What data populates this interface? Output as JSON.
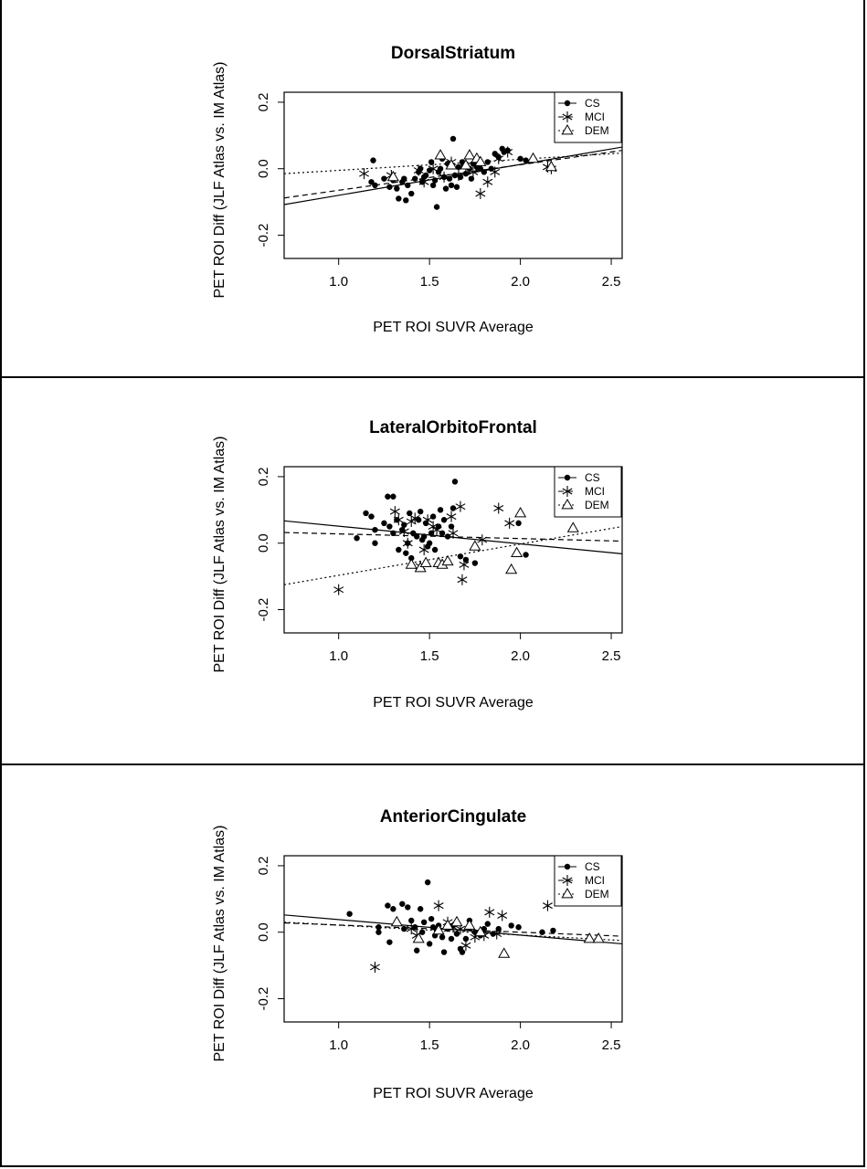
{
  "chart_data": [
    {
      "type": "scatter",
      "title": "DorsalStriatum",
      "xlabel": "PET ROI SUVR Average",
      "ylabel": "PET ROI Diff (JLF Atlas vs. IM Atlas)",
      "xlim": [
        0.7,
        2.56
      ],
      "ylim": [
        -0.27,
        0.23
      ],
      "x_ticks": [
        "1.0",
        "1.5",
        "2.0",
        "2.5"
      ],
      "y_ticks": [
        "-0.2",
        "0.0",
        "0.2"
      ],
      "legend_position": "top-right",
      "series": [
        {
          "name": "CS",
          "marker": "dot",
          "line": "solid",
          "fit": [
            [
              0.7,
              -0.108
            ],
            [
              2.56,
              0.065
            ]
          ],
          "points": [
            [
              1.18,
              -0.04
            ],
            [
              1.19,
              0.025
            ],
            [
              1.2,
              -0.05
            ],
            [
              1.25,
              -0.03
            ],
            [
              1.28,
              -0.055
            ],
            [
              1.3,
              -0.035
            ],
            [
              1.32,
              -0.06
            ],
            [
              1.33,
              -0.09
            ],
            [
              1.35,
              -0.04
            ],
            [
              1.36,
              -0.03
            ],
            [
              1.37,
              -0.095
            ],
            [
              1.38,
              -0.05
            ],
            [
              1.4,
              -0.075
            ],
            [
              1.42,
              -0.03
            ],
            [
              1.44,
              -0.01
            ],
            [
              1.45,
              0.0
            ],
            [
              1.46,
              -0.04
            ],
            [
              1.47,
              -0.025
            ],
            [
              1.48,
              -0.02
            ],
            [
              1.5,
              -0.005
            ],
            [
              1.51,
              0.02
            ],
            [
              1.52,
              -0.05
            ],
            [
              1.53,
              -0.035
            ],
            [
              1.54,
              -0.115
            ],
            [
              1.55,
              -0.01
            ],
            [
              1.56,
              0.0
            ],
            [
              1.57,
              0.03
            ],
            [
              1.58,
              -0.025
            ],
            [
              1.59,
              -0.06
            ],
            [
              1.6,
              0.015
            ],
            [
              1.61,
              -0.03
            ],
            [
              1.62,
              -0.05
            ],
            [
              1.63,
              0.09
            ],
            [
              1.64,
              -0.02
            ],
            [
              1.65,
              -0.055
            ],
            [
              1.66,
              0.005
            ],
            [
              1.67,
              -0.025
            ],
            [
              1.68,
              0.02
            ],
            [
              1.69,
              0.01
            ],
            [
              1.7,
              -0.015
            ],
            [
              1.72,
              0.0
            ],
            [
              1.73,
              -0.03
            ],
            [
              1.74,
              0.015
            ],
            [
              1.76,
              0.005
            ],
            [
              1.78,
              0.0
            ],
            [
              1.8,
              -0.01
            ],
            [
              1.82,
              0.02
            ],
            [
              1.84,
              0.0
            ],
            [
              1.86,
              0.045
            ],
            [
              1.88,
              0.035
            ],
            [
              1.9,
              0.06
            ],
            [
              1.91,
              0.05
            ],
            [
              1.93,
              0.055
            ],
            [
              2.0,
              0.03
            ],
            [
              2.03,
              0.025
            ]
          ]
        },
        {
          "name": "MCI",
          "marker": "asterisk",
          "line": "dashed",
          "fit": [
            [
              0.7,
              -0.088
            ],
            [
              2.56,
              0.055
            ]
          ],
          "points": [
            [
              1.14,
              -0.015
            ],
            [
              1.29,
              -0.02
            ],
            [
              1.44,
              -0.005
            ],
            [
              1.47,
              -0.04
            ],
            [
              1.52,
              0.0
            ],
            [
              1.58,
              -0.025
            ],
            [
              1.62,
              0.02
            ],
            [
              1.66,
              -0.02
            ],
            [
              1.7,
              0.01
            ],
            [
              1.74,
              -0.01
            ],
            [
              1.78,
              -0.075
            ],
            [
              1.82,
              -0.04
            ],
            [
              1.86,
              -0.01
            ],
            [
              1.88,
              0.03
            ],
            [
              1.93,
              0.05
            ],
            [
              2.15,
              0.005
            ],
            [
              2.17,
              0.0
            ]
          ]
        },
        {
          "name": "DEM",
          "marker": "triangle",
          "line": "dotted",
          "fit": [
            [
              0.7,
              -0.015
            ],
            [
              2.56,
              0.047
            ]
          ],
          "points": [
            [
              1.3,
              -0.025
            ],
            [
              1.56,
              0.04
            ],
            [
              1.62,
              0.01
            ],
            [
              1.7,
              0.01
            ],
            [
              1.72,
              0.04
            ],
            [
              1.76,
              0.03
            ],
            [
              1.78,
              0.02
            ],
            [
              2.07,
              0.03
            ],
            [
              2.17,
              0.005
            ]
          ]
        }
      ]
    },
    {
      "type": "scatter",
      "title": "LateralOrbitoFrontal",
      "xlabel": "PET ROI SUVR Average",
      "ylabel": "PET ROI Diff (JLF Atlas vs. IM Atlas)",
      "xlim": [
        0.7,
        2.56
      ],
      "ylim": [
        -0.27,
        0.23
      ],
      "x_ticks": [
        "1.0",
        "1.5",
        "2.0",
        "2.5"
      ],
      "y_ticks": [
        "-0.2",
        "0.0",
        "0.2"
      ],
      "legend_position": "top-right",
      "series": [
        {
          "name": "CS",
          "marker": "dot",
          "line": "solid",
          "fit": [
            [
              0.7,
              0.067
            ],
            [
              2.56,
              -0.032
            ]
          ],
          "points": [
            [
              1.1,
              0.015
            ],
            [
              1.15,
              0.09
            ],
            [
              1.18,
              0.08
            ],
            [
              1.2,
              0.04
            ],
            [
              1.2,
              0.0
            ],
            [
              1.25,
              0.06
            ],
            [
              1.27,
              0.14
            ],
            [
              1.28,
              0.05
            ],
            [
              1.3,
              0.14
            ],
            [
              1.3,
              0.03
            ],
            [
              1.32,
              0.07
            ],
            [
              1.33,
              -0.02
            ],
            [
              1.35,
              0.04
            ],
            [
              1.36,
              0.055
            ],
            [
              1.37,
              -0.03
            ],
            [
              1.38,
              0.0
            ],
            [
              1.39,
              0.09
            ],
            [
              1.4,
              -0.045
            ],
            [
              1.41,
              0.03
            ],
            [
              1.43,
              0.02
            ],
            [
              1.44,
              0.07
            ],
            [
              1.45,
              0.095
            ],
            [
              1.46,
              0.01
            ],
            [
              1.47,
              0.02
            ],
            [
              1.48,
              0.06
            ],
            [
              1.49,
              -0.01
            ],
            [
              1.5,
              0.0
            ],
            [
              1.51,
              0.03
            ],
            [
              1.52,
              0.08
            ],
            [
              1.53,
              -0.02
            ],
            [
              1.55,
              0.05
            ],
            [
              1.56,
              0.1
            ],
            [
              1.57,
              0.03
            ],
            [
              1.58,
              0.07
            ],
            [
              1.6,
              0.02
            ],
            [
              1.62,
              0.05
            ],
            [
              1.63,
              0.105
            ],
            [
              1.64,
              0.185
            ],
            [
              1.67,
              -0.04
            ],
            [
              1.7,
              -0.05
            ],
            [
              1.75,
              -0.06
            ],
            [
              1.99,
              0.06
            ],
            [
              2.03,
              -0.035
            ]
          ]
        },
        {
          "name": "MCI",
          "marker": "asterisk",
          "line": "dashed",
          "fit": [
            [
              0.7,
              0.032
            ],
            [
              2.56,
              0.006
            ]
          ],
          "points": [
            [
              1.0,
              -0.14
            ],
            [
              1.31,
              0.095
            ],
            [
              1.33,
              0.07
            ],
            [
              1.36,
              0.035
            ],
            [
              1.38,
              0.0
            ],
            [
              1.4,
              0.065
            ],
            [
              1.42,
              0.075
            ],
            [
              1.45,
              -0.07
            ],
            [
              1.47,
              -0.02
            ],
            [
              1.49,
              0.07
            ],
            [
              1.52,
              0.05
            ],
            [
              1.54,
              0.04
            ],
            [
              1.62,
              0.08
            ],
            [
              1.63,
              0.03
            ],
            [
              1.67,
              0.11
            ],
            [
              1.68,
              -0.11
            ],
            [
              1.69,
              -0.065
            ],
            [
              1.79,
              0.01
            ],
            [
              1.88,
              0.105
            ],
            [
              1.94,
              0.06
            ]
          ]
        },
        {
          "name": "DEM",
          "marker": "triangle",
          "line": "dotted",
          "fit": [
            [
              0.7,
              -0.125
            ],
            [
              2.56,
              0.05
            ]
          ],
          "points": [
            [
              1.4,
              -0.065
            ],
            [
              1.45,
              -0.075
            ],
            [
              1.48,
              -0.06
            ],
            [
              1.55,
              -0.06
            ],
            [
              1.57,
              -0.065
            ],
            [
              1.6,
              -0.055
            ],
            [
              1.75,
              -0.01
            ],
            [
              1.95,
              -0.08
            ],
            [
              1.98,
              -0.03
            ],
            [
              2.0,
              0.09
            ],
            [
              2.29,
              0.045
            ]
          ]
        }
      ]
    },
    {
      "type": "scatter",
      "title": "AnteriorCingulate",
      "xlabel": "PET ROI SUVR Average",
      "ylabel": "PET ROI Diff (JLF Atlas vs. IM Atlas)",
      "xlim": [
        0.7,
        2.56
      ],
      "ylim": [
        -0.27,
        0.23
      ],
      "x_ticks": [
        "1.0",
        "1.5",
        "2.0",
        "2.5"
      ],
      "y_ticks": [
        "-0.2",
        "0.0",
        "0.2"
      ],
      "legend_position": "top-right",
      "series": [
        {
          "name": "CS",
          "marker": "dot",
          "line": "solid",
          "fit": [
            [
              0.7,
              0.052
            ],
            [
              2.56,
              -0.035
            ]
          ],
          "points": [
            [
              1.06,
              0.055
            ],
            [
              1.22,
              0.0
            ],
            [
              1.22,
              0.015
            ],
            [
              1.27,
              0.08
            ],
            [
              1.28,
              -0.03
            ],
            [
              1.3,
              0.07
            ],
            [
              1.32,
              0.03
            ],
            [
              1.35,
              0.085
            ],
            [
              1.36,
              0.01
            ],
            [
              1.38,
              0.075
            ],
            [
              1.4,
              0.035
            ],
            [
              1.42,
              0.015
            ],
            [
              1.43,
              -0.055
            ],
            [
              1.45,
              0.07
            ],
            [
              1.46,
              0.0
            ],
            [
              1.47,
              0.03
            ],
            [
              1.49,
              0.15
            ],
            [
              1.5,
              -0.035
            ],
            [
              1.51,
              0.04
            ],
            [
              1.52,
              0.015
            ],
            [
              1.53,
              -0.01
            ],
            [
              1.54,
              0.005
            ],
            [
              1.55,
              0.02
            ],
            [
              1.57,
              -0.015
            ],
            [
              1.58,
              -0.06
            ],
            [
              1.6,
              0.01
            ],
            [
              1.62,
              -0.02
            ],
            [
              1.63,
              0.02
            ],
            [
              1.65,
              -0.005
            ],
            [
              1.67,
              -0.05
            ],
            [
              1.68,
              -0.06
            ],
            [
              1.7,
              -0.02
            ],
            [
              1.72,
              0.035
            ],
            [
              1.75,
              0.0
            ],
            [
              1.78,
              -0.01
            ],
            [
              1.8,
              0.01
            ],
            [
              1.82,
              0.025
            ],
            [
              1.85,
              -0.005
            ],
            [
              1.88,
              0.01
            ],
            [
              1.95,
              0.02
            ],
            [
              1.99,
              0.015
            ],
            [
              2.12,
              0.0
            ],
            [
              2.18,
              0.005
            ]
          ]
        },
        {
          "name": "MCI",
          "marker": "asterisk",
          "line": "dashed",
          "fit": [
            [
              0.7,
              0.028
            ],
            [
              2.56,
              -0.012
            ]
          ],
          "points": [
            [
              1.2,
              -0.105
            ],
            [
              1.4,
              0.01
            ],
            [
              1.43,
              -0.01
            ],
            [
              1.55,
              0.08
            ],
            [
              1.6,
              0.03
            ],
            [
              1.63,
              0.015
            ],
            [
              1.67,
              0.01
            ],
            [
              1.7,
              -0.04
            ],
            [
              1.75,
              -0.015
            ],
            [
              1.8,
              -0.01
            ],
            [
              1.83,
              0.06
            ],
            [
              1.87,
              -0.005
            ],
            [
              1.9,
              0.05
            ],
            [
              2.15,
              0.08
            ]
          ]
        },
        {
          "name": "DEM",
          "marker": "triangle",
          "line": "dotted",
          "fit": [
            [
              0.7,
              0.03
            ],
            [
              2.56,
              -0.025
            ]
          ],
          "points": [
            [
              1.32,
              0.03
            ],
            [
              1.44,
              -0.02
            ],
            [
              1.55,
              0.005
            ],
            [
              1.6,
              0.02
            ],
            [
              1.65,
              0.03
            ],
            [
              1.72,
              0.02
            ],
            [
              1.78,
              0.0
            ],
            [
              1.91,
              -0.065
            ],
            [
              2.38,
              -0.02
            ],
            [
              2.43,
              -0.02
            ]
          ]
        }
      ]
    }
  ]
}
